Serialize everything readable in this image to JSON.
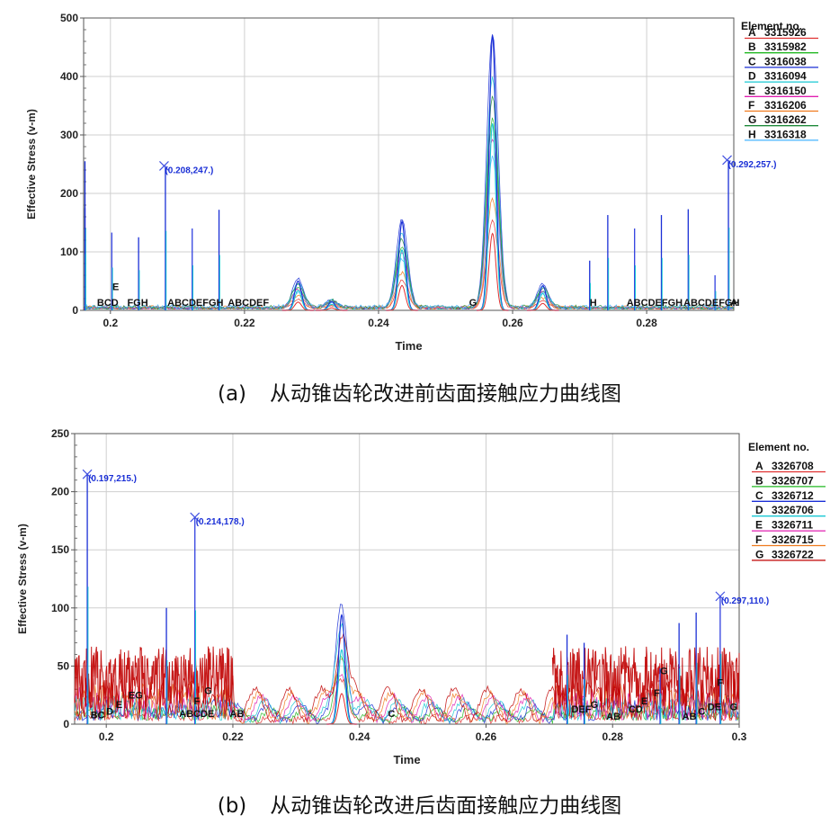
{
  "figures": [
    {
      "caption_tag": "(a)",
      "caption": "从动锥齿轮改进前齿面接触应力曲线图",
      "legend_title": "Element no.",
      "legend": [
        {
          "key": "A",
          "label": "3315926",
          "color": "#e03030"
        },
        {
          "key": "B",
          "label": "3315982",
          "color": "#22b822"
        },
        {
          "key": "C",
          "label": "3316038",
          "color": "#1a2fd6"
        },
        {
          "key": "D",
          "label": "3316094",
          "color": "#19c8d4"
        },
        {
          "key": "E",
          "label": "3316150",
          "color": "#e020b0"
        },
        {
          "key": "F",
          "label": "3316206",
          "color": "#f07a1e"
        },
        {
          "key": "G",
          "label": "3316262",
          "color": "#1e8a3a"
        },
        {
          "key": "H",
          "label": "3316318",
          "color": "#46b4ff"
        }
      ],
      "annotations": [
        {
          "text": "(0.208,247.)",
          "x": 0.208,
          "y": 247
        },
        {
          "text": "(0.292,257.)",
          "x": 0.292,
          "y": 257
        }
      ],
      "marker_label_rows": [
        {
          "text": "BCD",
          "x": 0.198
        },
        {
          "text": "E",
          "x": 0.2003,
          "y": 35
        },
        {
          "text": "FGH",
          "x": 0.2025
        },
        {
          "text": "ABCDEFGH",
          "x": 0.2085
        },
        {
          "text": "ABCDEF",
          "x": 0.2175
        },
        {
          "text": "G",
          "x": 0.2535
        },
        {
          "text": "H",
          "x": 0.2715
        },
        {
          "text": "ABCDEFGH",
          "x": 0.277
        },
        {
          "text": "ABCDEFGH",
          "x": 0.2855
        },
        {
          "text": "A",
          "x": 0.2925
        }
      ]
    },
    {
      "caption_tag": "(b)",
      "caption": "从动锥齿轮改进后齿面接触应力曲线图",
      "legend_title": "Element no.",
      "legend": [
        {
          "key": "A",
          "label": "3326708",
          "color": "#e03030"
        },
        {
          "key": "B",
          "label": "3326707",
          "color": "#22b822"
        },
        {
          "key": "C",
          "label": "3326712",
          "color": "#1a2fd6"
        },
        {
          "key": "D",
          "label": "3326706",
          "color": "#19c8d4"
        },
        {
          "key": "E",
          "label": "3326711",
          "color": "#e020b0"
        },
        {
          "key": "F",
          "label": "3326715",
          "color": "#f07a1e"
        },
        {
          "key": "G",
          "label": "3326722",
          "color": "#c00000"
        }
      ],
      "annotations": [
        {
          "text": "(0.197,215.)",
          "x": 0.197,
          "y": 215
        },
        {
          "text": "(0.214,178.)",
          "x": 0.214,
          "y": 178
        },
        {
          "text": "(0.297,110.)",
          "x": 0.297,
          "y": 110
        }
      ],
      "marker_label_rows": [
        {
          "text": "BC",
          "x": 0.1975,
          "y": 5
        },
        {
          "text": "D",
          "x": 0.2,
          "y": 8
        },
        {
          "text": "E",
          "x": 0.2015,
          "y": 14
        },
        {
          "text": "EG",
          "x": 0.2035,
          "y": 22
        },
        {
          "text": "ABCDE",
          "x": 0.2115,
          "y": 6
        },
        {
          "text": "F",
          "x": 0.2138,
          "y": 17
        },
        {
          "text": "G",
          "x": 0.2155,
          "y": 26
        },
        {
          "text": "AB",
          "x": 0.2195,
          "y": 6
        },
        {
          "text": "C",
          "x": 0.2445,
          "y": 6
        },
        {
          "text": "DEF",
          "x": 0.2735,
          "y": 10
        },
        {
          "text": "G",
          "x": 0.2765,
          "y": 14
        },
        {
          "text": "AB",
          "x": 0.279,
          "y": 4
        },
        {
          "text": "CD",
          "x": 0.2825,
          "y": 10
        },
        {
          "text": "E",
          "x": 0.2845,
          "y": 17
        },
        {
          "text": "F",
          "x": 0.2865,
          "y": 24
        },
        {
          "text": "G",
          "x": 0.2875,
          "y": 43
        },
        {
          "text": "AB",
          "x": 0.291,
          "y": 4
        },
        {
          "text": "C",
          "x": 0.2935,
          "y": 8
        },
        {
          "text": "DE",
          "x": 0.295,
          "y": 12
        },
        {
          "text": "F",
          "x": 0.2965,
          "y": 33
        },
        {
          "text": "G",
          "x": 0.2985,
          "y": 12
        }
      ]
    }
  ],
  "chart_data": [
    {
      "type": "line",
      "title": "",
      "xlabel": "Time",
      "ylabel": "Effective Stress (v-m)",
      "xlim": [
        0.196,
        0.293
      ],
      "ylim": [
        0,
        500
      ],
      "xticks": [
        0.2,
        0.22,
        0.24,
        0.26,
        0.28
      ],
      "xtick_labels": [
        "0.2",
        "0.22",
        "0.24",
        "0.26",
        "0.28"
      ],
      "yticks": [
        0,
        100,
        200,
        300,
        400,
        500
      ],
      "grid": true,
      "legend_position": "right",
      "series_names": [
        "3315926",
        "3315982",
        "3316038",
        "3316094",
        "3316150",
        "3316206",
        "3316262",
        "3316318"
      ],
      "spikes": [
        {
          "x": 0.1962,
          "y": 255
        },
        {
          "x": 0.1962,
          "y": 175
        },
        {
          "x": 0.2002,
          "y": 133
        },
        {
          "x": 0.2042,
          "y": 125
        },
        {
          "x": 0.2082,
          "y": 247
        },
        {
          "x": 0.2122,
          "y": 140
        },
        {
          "x": 0.2162,
          "y": 172
        },
        {
          "x": 0.2742,
          "y": 163
        },
        {
          "x": 0.2782,
          "y": 140
        },
        {
          "x": 0.2822,
          "y": 163
        },
        {
          "x": 0.2862,
          "y": 173
        },
        {
          "x": 0.2902,
          "y": 60
        },
        {
          "x": 0.2922,
          "y": 257
        },
        {
          "x": 0.2715,
          "y": 85
        }
      ],
      "peaks": [
        {
          "x": 0.228,
          "y": 50
        },
        {
          "x": 0.2435,
          "y": 152
        },
        {
          "x": 0.257,
          "y": 470
        },
        {
          "x": 0.2645,
          "y": 42
        },
        {
          "x": 0.233,
          "y": 15
        }
      ]
    },
    {
      "type": "line",
      "title": "",
      "xlabel": "Time",
      "ylabel": "Effective Stress (v-m)",
      "xlim": [
        0.195,
        0.3
      ],
      "ylim": [
        0,
        250
      ],
      "xticks": [
        0.2,
        0.22,
        0.24,
        0.26,
        0.28,
        0.3
      ],
      "xtick_labels": [
        "0.2",
        "0.22",
        "0.24",
        "0.26",
        "0.28",
        "0.3"
      ],
      "yticks": [
        0,
        50,
        100,
        150,
        200,
        250
      ],
      "grid": true,
      "legend_position": "right",
      "series_names": [
        "3326708",
        "3326707",
        "3326712",
        "3326706",
        "3326711",
        "3326715",
        "3326722"
      ],
      "spikes": [
        {
          "x": 0.197,
          "y": 215
        },
        {
          "x": 0.2095,
          "y": 100
        },
        {
          "x": 0.214,
          "y": 178
        },
        {
          "x": 0.2728,
          "y": 77
        },
        {
          "x": 0.2755,
          "y": 70
        },
        {
          "x": 0.2875,
          "y": 48
        },
        {
          "x": 0.2905,
          "y": 87
        },
        {
          "x": 0.2932,
          "y": 96
        },
        {
          "x": 0.297,
          "y": 110
        }
      ],
      "peaks": [
        {
          "x": 0.2372,
          "y": 94
        }
      ],
      "dense_regions": [
        {
          "from": 0.195,
          "to": 0.22,
          "level": 35
        },
        {
          "from": 0.2705,
          "to": 0.3,
          "level": 35
        }
      ],
      "calm_region": {
        "from": 0.22,
        "to": 0.2705,
        "level": 25
      }
    }
  ]
}
